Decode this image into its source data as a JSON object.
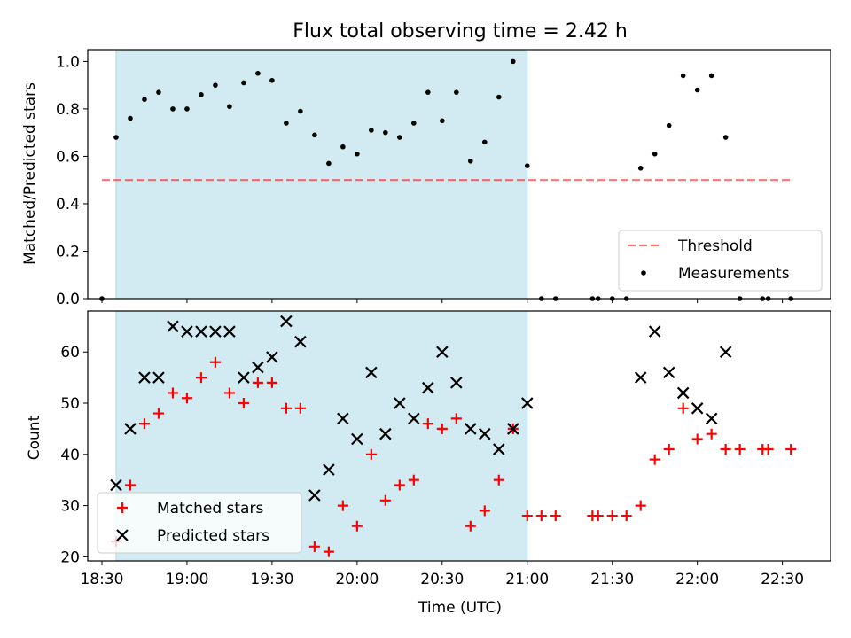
{
  "title": "Flux total observing time = 2.42 h",
  "colors": {
    "band": "#add8e6",
    "threshold": "#ff0000",
    "measurements": "#000000",
    "matched": "#ff0000",
    "predicted": "#000000"
  },
  "chart_data": [
    {
      "type": "scatter",
      "ylabel": "Matched/Predicted stars",
      "xlabel": "",
      "xlim": [
        "18:25",
        "22:47"
      ],
      "ylim": [
        0,
        1.05
      ],
      "yticks": [
        "0.0",
        "0.2",
        "0.4",
        "0.6",
        "0.8",
        "1.0"
      ],
      "shaded_band": {
        "x0": "18:35",
        "x1": "21:00"
      },
      "legend": {
        "position": "lower right",
        "entries": [
          "Threshold",
          "Measurements"
        ]
      },
      "series": [
        {
          "name": "Threshold",
          "style": "dashed-line",
          "points": [
            [
              "18:30",
              0.5
            ],
            [
              "22:33",
              0.5
            ]
          ]
        },
        {
          "name": "Measurements",
          "style": "dot",
          "points": [
            [
              "18:30",
              0.0
            ],
            [
              "18:35",
              0.68
            ],
            [
              "18:40",
              0.76
            ],
            [
              "18:45",
              0.84
            ],
            [
              "18:50",
              0.87
            ],
            [
              "18:55",
              0.8
            ],
            [
              "19:00",
              0.8
            ],
            [
              "19:05",
              0.86
            ],
            [
              "19:10",
              0.9
            ],
            [
              "19:15",
              0.81
            ],
            [
              "19:20",
              0.91
            ],
            [
              "19:25",
              0.95
            ],
            [
              "19:30",
              0.92
            ],
            [
              "19:35",
              0.74
            ],
            [
              "19:40",
              0.79
            ],
            [
              "19:45",
              0.69
            ],
            [
              "19:50",
              0.57
            ],
            [
              "19:55",
              0.64
            ],
            [
              "20:00",
              0.61
            ],
            [
              "20:05",
              0.71
            ],
            [
              "20:10",
              0.7
            ],
            [
              "20:15",
              0.68
            ],
            [
              "20:20",
              0.74
            ],
            [
              "20:25",
              0.87
            ],
            [
              "20:30",
              0.75
            ],
            [
              "20:35",
              0.87
            ],
            [
              "20:40",
              0.58
            ],
            [
              "20:45",
              0.66
            ],
            [
              "20:50",
              0.85
            ],
            [
              "20:55",
              1.0
            ],
            [
              "21:00",
              0.56
            ],
            [
              "21:05",
              0.0
            ],
            [
              "21:10",
              0.0
            ],
            [
              "21:23",
              0.0
            ],
            [
              "21:25",
              0.0
            ],
            [
              "21:30",
              0.0
            ],
            [
              "21:35",
              0.0
            ],
            [
              "21:40",
              0.55
            ],
            [
              "21:45",
              0.61
            ],
            [
              "21:50",
              0.73
            ],
            [
              "21:55",
              0.94
            ],
            [
              "22:00",
              0.88
            ],
            [
              "22:05",
              0.94
            ],
            [
              "22:10",
              0.68
            ],
            [
              "22:15",
              0.0
            ],
            [
              "22:23",
              0.0
            ],
            [
              "22:25",
              0.0
            ],
            [
              "22:33",
              0.0
            ]
          ]
        }
      ]
    },
    {
      "type": "scatter",
      "ylabel": "Count",
      "xlabel": "Time (UTC)",
      "xlim": [
        "18:25",
        "22:47"
      ],
      "ylim": [
        19.2,
        68
      ],
      "xticks": [
        "18:30",
        "19:00",
        "19:30",
        "20:00",
        "20:30",
        "21:00",
        "21:30",
        "22:00",
        "22:30"
      ],
      "yticks": [
        "20",
        "30",
        "40",
        "50",
        "60"
      ],
      "shaded_band": {
        "x0": "18:35",
        "x1": "21:00"
      },
      "legend": {
        "position": "lower left",
        "entries": [
          "Matched stars",
          "Predicted stars"
        ]
      },
      "series": [
        {
          "name": "Matched stars",
          "style": "plus",
          "points": [
            [
              "18:35",
              23
            ],
            [
              "18:40",
              34
            ],
            [
              "18:45",
              46
            ],
            [
              "18:50",
              48
            ],
            [
              "18:55",
              52
            ],
            [
              "19:00",
              51
            ],
            [
              "19:05",
              55
            ],
            [
              "19:10",
              58
            ],
            [
              "19:15",
              52
            ],
            [
              "19:20",
              50
            ],
            [
              "19:25",
              54
            ],
            [
              "19:30",
              54
            ],
            [
              "19:35",
              49
            ],
            [
              "19:40",
              49
            ],
            [
              "19:45",
              22
            ],
            [
              "19:50",
              21
            ],
            [
              "19:55",
              30
            ],
            [
              "20:00",
              26
            ],
            [
              "20:05",
              40
            ],
            [
              "20:10",
              31
            ],
            [
              "20:15",
              34
            ],
            [
              "20:20",
              35
            ],
            [
              "20:25",
              46
            ],
            [
              "20:30",
              45
            ],
            [
              "20:35",
              47
            ],
            [
              "20:40",
              26
            ],
            [
              "20:45",
              29
            ],
            [
              "20:50",
              35
            ],
            [
              "20:55",
              45
            ],
            [
              "21:00",
              28
            ],
            [
              "21:05",
              28
            ],
            [
              "21:10",
              28
            ],
            [
              "21:23",
              28
            ],
            [
              "21:25",
              28
            ],
            [
              "21:30",
              28
            ],
            [
              "21:35",
              28
            ],
            [
              "21:40",
              30
            ],
            [
              "21:45",
              39
            ],
            [
              "21:50",
              41
            ],
            [
              "21:55",
              49
            ],
            [
              "22:00",
              43
            ],
            [
              "22:05",
              44
            ],
            [
              "22:10",
              41
            ],
            [
              "22:15",
              41
            ],
            [
              "22:23",
              41
            ],
            [
              "22:25",
              41
            ],
            [
              "22:33",
              41
            ]
          ]
        },
        {
          "name": "Predicted stars",
          "style": "x",
          "points": [
            [
              "18:35",
              34
            ],
            [
              "18:40",
              45
            ],
            [
              "18:45",
              55
            ],
            [
              "18:50",
              55
            ],
            [
              "18:55",
              65
            ],
            [
              "19:00",
              64
            ],
            [
              "19:05",
              64
            ],
            [
              "19:10",
              64
            ],
            [
              "19:15",
              64
            ],
            [
              "19:20",
              55
            ],
            [
              "19:25",
              57
            ],
            [
              "19:30",
              59
            ],
            [
              "19:35",
              66
            ],
            [
              "19:40",
              62
            ],
            [
              "19:45",
              32
            ],
            [
              "19:50",
              37
            ],
            [
              "19:55",
              47
            ],
            [
              "20:00",
              43
            ],
            [
              "20:05",
              56
            ],
            [
              "20:10",
              44
            ],
            [
              "20:15",
              50
            ],
            [
              "20:20",
              47
            ],
            [
              "20:25",
              53
            ],
            [
              "20:30",
              60
            ],
            [
              "20:35",
              54
            ],
            [
              "20:40",
              45
            ],
            [
              "20:45",
              44
            ],
            [
              "20:50",
              41
            ],
            [
              "20:55",
              45
            ],
            [
              "21:00",
              50
            ],
            [
              "21:40",
              55
            ],
            [
              "21:45",
              64
            ],
            [
              "21:50",
              56
            ],
            [
              "21:55",
              52
            ],
            [
              "22:00",
              49
            ],
            [
              "22:05",
              47
            ],
            [
              "22:10",
              60
            ]
          ]
        }
      ]
    }
  ]
}
